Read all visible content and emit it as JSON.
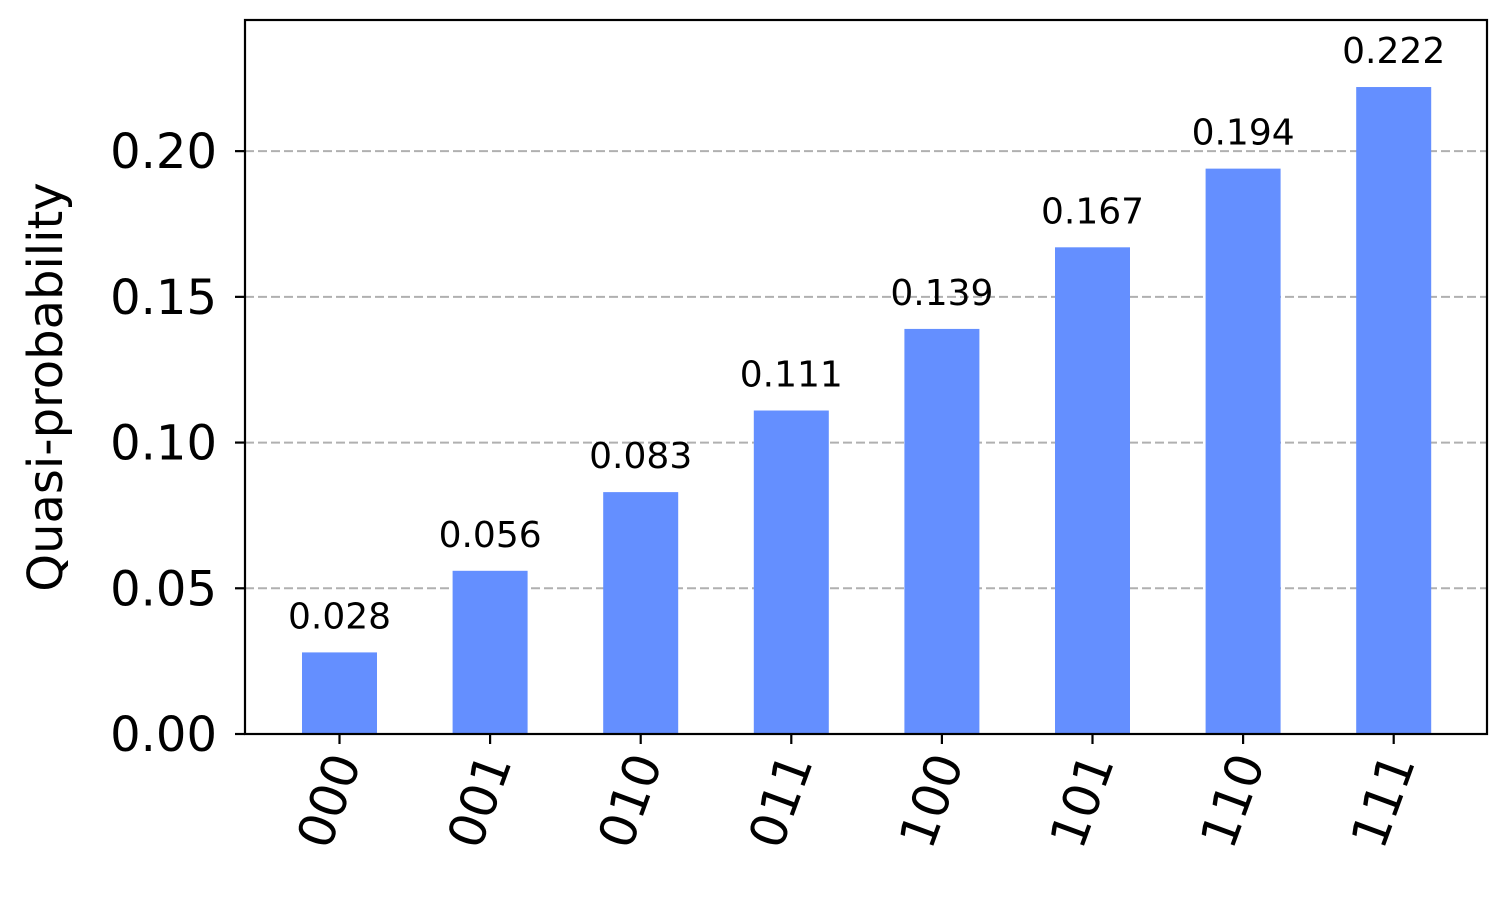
{
  "chart_data": {
    "type": "bar",
    "title": "",
    "xlabel": "",
    "ylabel": "Quasi-probability",
    "categories": [
      "000",
      "001",
      "010",
      "011",
      "100",
      "101",
      "110",
      "111"
    ],
    "values": [
      0.028,
      0.056,
      0.083,
      0.111,
      0.139,
      0.167,
      0.194,
      0.222
    ],
    "value_labels": [
      "0.028",
      "0.056",
      "0.083",
      "0.111",
      "0.139",
      "0.167",
      "0.194",
      "0.222"
    ],
    "yticks": [
      0.0,
      0.05,
      0.1,
      0.15,
      0.2
    ],
    "ytick_labels": [
      "0.00",
      "0.05",
      "0.10",
      "0.15",
      "0.20"
    ],
    "ylim": [
      0,
      0.245
    ],
    "grid": "horizontal dashed",
    "bar_color": "#648fff",
    "grid_color": "#b0b0b0"
  }
}
